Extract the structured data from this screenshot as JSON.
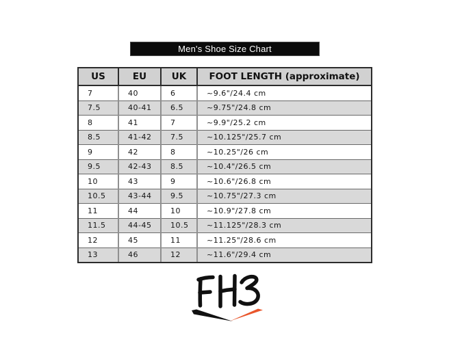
{
  "chart_data": {
    "type": "table",
    "title": "Men's Shoe Size Chart",
    "columns": [
      "US",
      "EU",
      "UK",
      "FOOT LENGTH (approximate)"
    ],
    "rows": [
      [
        "7",
        "40",
        "6",
        "~9.6\"/24.4 cm"
      ],
      [
        "7.5",
        "40-41",
        "6.5",
        "~9.75\"/24.8 cm"
      ],
      [
        "8",
        "41",
        "7",
        "~9.9\"/25.2 cm"
      ],
      [
        "8.5",
        "41-42",
        "7.5",
        "~10.125\"/25.7 cm"
      ],
      [
        "9",
        "42",
        "8",
        "~10.25\"/26 cm"
      ],
      [
        "9.5",
        "42-43",
        "8.5",
        "~10.4\"/26.5 cm"
      ],
      [
        "10",
        "43",
        "9",
        "~10.6\"/26.8 cm"
      ],
      [
        "10.5",
        "43-44",
        "9.5",
        "~10.75\"/27.3 cm"
      ],
      [
        "11",
        "44",
        "10",
        "~10.9\"/27.8 cm"
      ],
      [
        "11.5",
        "44-45",
        "10.5",
        "~11.125\"/28.3 cm"
      ],
      [
        "12",
        "45",
        "11",
        "~11.25\"/28.6 cm"
      ],
      [
        "13",
        "46",
        "12",
        "~11.6\"/29.4 cm"
      ]
    ],
    "layout": {
      "striped_rows": true,
      "header_position": "top",
      "title_position": "above-table"
    }
  },
  "logo": {
    "text": "FHS",
    "letter_color": "#101010",
    "swoosh_black": "#111111",
    "swoosh_orange": "#e9562c"
  },
  "colors": {
    "title_bar_bg": "#0b0b0b",
    "title_bar_text": "#ffffff",
    "header_bg": "#d1d1d1",
    "row_stripe": "#d9d9d9",
    "border_dark": "#2b2b2b",
    "border_gray": "#8f8f8f"
  }
}
